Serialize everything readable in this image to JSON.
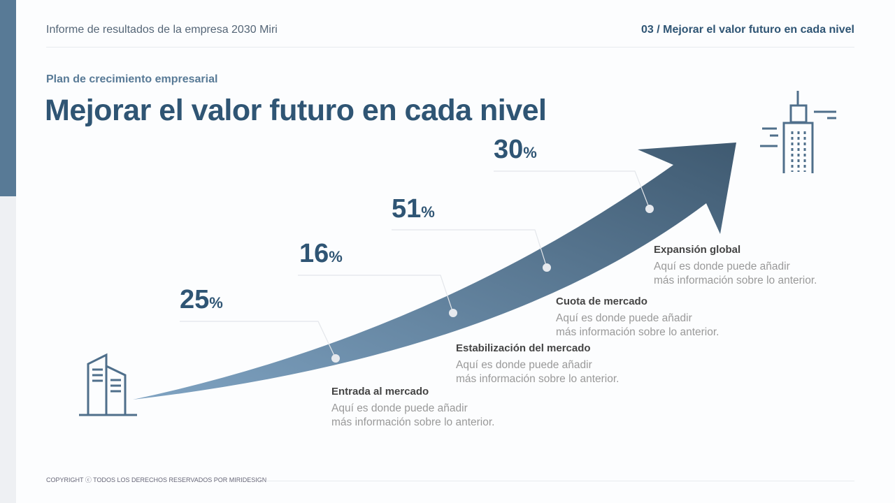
{
  "header": {
    "left": "Informe de resultados de la empresa 2030 Miri",
    "right": "03 / Mejorar el valor futuro en cada nivel"
  },
  "subtitle": "Plan de crecimiento empresarial",
  "title": "Mejorar el valor futuro en cada nivel",
  "colors": {
    "accent": "#587a96",
    "title": "#2f5574",
    "arrow_start": "#7fa3c2",
    "arrow_end": "#3f5a71"
  },
  "steps": [
    {
      "value": "25",
      "unit": "%",
      "label": "Entrada al mercado",
      "desc1": "Aquí es donde puede añadir",
      "desc2": "más información sobre lo anterior."
    },
    {
      "value": "16",
      "unit": "%",
      "label": "Estabilización del mercado",
      "desc1": "Aquí es donde puede añadir",
      "desc2": "más información sobre lo anterior."
    },
    {
      "value": "51",
      "unit": "%",
      "label": "Cuota de mercado",
      "desc1": "Aquí es donde puede añadir",
      "desc2": "más información sobre lo anterior."
    },
    {
      "value": "30",
      "unit": "%",
      "label": "Expansión global",
      "desc1": "Aquí es donde puede añadir",
      "desc2": "más información sobre lo anterior."
    }
  ],
  "icons": {
    "start": "office-building-icon",
    "end": "skyscraper-icon"
  },
  "footer": "COPYRIGHT ⓒ TODOS LOS DERECHOS RESERVADOS POR MIRIDESIGN"
}
